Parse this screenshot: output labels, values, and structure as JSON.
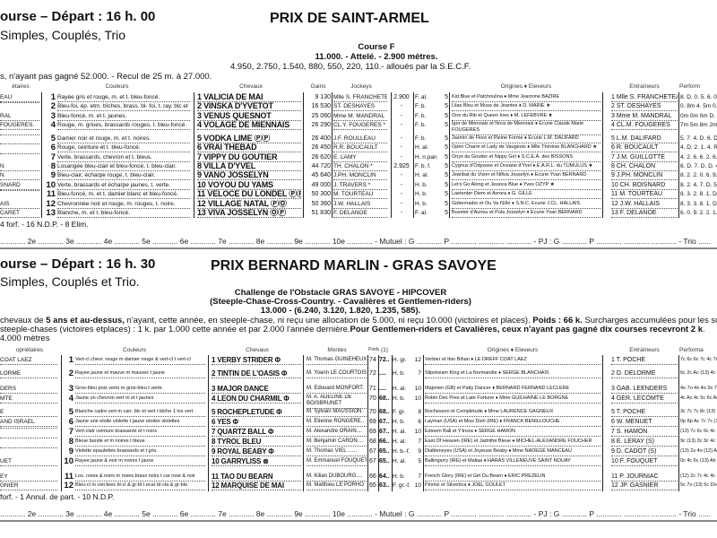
{
  "race1": {
    "header": "ourse  – Départ : 16 h. 00",
    "bets": "Simples, Couplés, Trio",
    "title": "PRIX DE SAINT-ARMEL",
    "course": "Course F",
    "allocation": "11.000. - Attelé. - 2.900 mètres.",
    "prizes": "4.950, 2.750, 1.540, 880, 550, 220, 110.- alloués par la S.E.C.F.",
    "conditions": "s, n'ayant pas gagné 52.000. - Recul de 25 m. à 27.000.",
    "columns": {
      "owners": "étaires",
      "colors": "Couleurs",
      "horses": "Chevaux",
      "gains": "Gains",
      "jockeys": "Jockeys",
      "origins": "Origines ♦ Eleveurs",
      "trainers": "Entraîneurs",
      "perf": "Perform"
    },
    "rows": [
      {
        "owner": "EAU",
        "num": "1",
        "colors": "Rayée gris et rouge, m. et t. bleu-foncé.",
        "horse": "1 VALICIA DE MAI",
        "gains": "9 130",
        "jockey": "Mlle S. FRANCHETEAU",
        "dist": "2.900",
        "sex": "F. al.",
        "age": "5",
        "origins": "Kid Blue et Patchoulina ♦ Mme Jeannine BAZIRE",
        "trainer": "1 Mlle S. FRANCHETEAU",
        "perf": "8. D. 0. 5. 6. 0."
      },
      {
        "owner": "",
        "num": "2",
        "colors": "Bleu-foi, ép. etm. bîches, brass. bl- foi, t. ray. blc et bla-fon",
        "horse": "2 VINSKA D'YVETOT",
        "gains": "16 530",
        "jockey": "ST. DESHAYES",
        "dist": "-",
        "sex": "F. b.",
        "age": "5",
        "origins": "Lilas Bleu et Muse de Jeantes ♦ D. MARIE ★",
        "trainer": "2 ST. DESHAYES",
        "perf": "0. 8m 4. 5m 0. 7"
      },
      {
        "owner": "RAL",
        "num": "3",
        "colors": "Bleu-foncé, m. et t. jaunes.",
        "horse": "3 VENUS QUESNOT",
        "gains": "25 060",
        "jockey": "Mme M. MANDRAL",
        "dist": "-",
        "sex": "F. b.",
        "age": "5",
        "origins": "One du Rib et Queen Ines ♦ M. LEFEBVRE ★",
        "trainer": "3 Mme M. MANDRAL",
        "perf": "0m 0m 0m D. 7"
      },
      {
        "owner": "FOUGERES.",
        "num": "4",
        "colors": "Rouge, m. grises, brassards rouges, t. bleu-foncé.",
        "horse": "4 VOLAGE DE MIENNAIS",
        "gains": "26 290",
        "jockey": "CL.Y. FOUGERES *",
        "dist": "-",
        "sex": "F. b.",
        "age": "5",
        "origins": "Igor de Miennais et Nora de Miennais ♦ Ecurie Claude Marie FOUGERES",
        "trainer": "4 CL.M. FOUGERES",
        "perf": "7m 5m 8m 2m 0"
      },
      {
        "owner": "",
        "num": "5",
        "colors": "Damier noir et rouge, m. et t. noires.",
        "horse": "5 VODKA LIME ⓅⓅ",
        "gains": "26 400",
        "jockey": "J.F. ROULLEAU",
        "dist": "-",
        "sex": "F. b.",
        "age": "5",
        "origins": "Jasmin de Flore et Pleine Forme ♦ Ecurie L.M. DALIFARD",
        "trainer": "5 L.M. DALIFARD",
        "perf": "5. 7. 4. D. 6. D."
      },
      {
        "owner": "",
        "num": "6",
        "colors": "Rouge, ceinture et t. bleu-foncé.",
        "horse": "6 VRAI THEBAD",
        "gains": "26 450",
        "jockey": "R.R. BOUCAULT",
        "dist": "-",
        "sex": "H. al.",
        "age": "5",
        "origins": "Open Charm et Lady de Vaugeois ♦ Mlle Thérèse BLANCHARD ★",
        "trainer": "6 R. BOUCAULT",
        "perf": "4. D. 2. 1. 4. R."
      },
      {
        "owner": "",
        "num": "7",
        "colors": "Verte, brassards, chevron et t. bleus.",
        "horse": "7 VIPPY DU GOUTIER",
        "gains": "26 620",
        "jockey": "E. LAMY",
        "dist": "-",
        "sex": "H. n.pan",
        "age": "5",
        "origins": "Onyx du Goutier et Nippy Girl ♦ S.C.E.A. des BISSONS",
        "trainer": "7 J.M. GUILLOTTE",
        "perf": "4. 2. 6. 6. 2. 6."
      },
      {
        "owner": "N",
        "num": "8",
        "colors": "Losangée bleu-clair et bleu-foncé, t. bleu-clair.",
        "horse": "8 VILLA D'YVEL",
        "gains": "44 720",
        "jockey": "TH. CHALON *",
        "dist": "2.925",
        "sex": "F. b. f.",
        "age": "5",
        "origins": "Cygnus d'Odyssee et Oceane d'Yvel ♦ E.A.R.L. du TUMULUS ★",
        "trainer": "8 CH. CHALON",
        "perf": "6. D. 7. D. D. 4."
      },
      {
        "owner": "N",
        "num": "9",
        "colors": "Bleu-clair, écharpe rouge, t. bleu-clair.",
        "horse": "9 VANO JOSSELYN",
        "gains": "45 640",
        "jockey": "J.PH. MONCLIN",
        "dist": "-",
        "sex": "H. al.",
        "age": "5",
        "origins": "Jeanbat du Vivier et Nifiva Josselyn ♦ Ecurie Yvan BERNARD",
        "trainer": "9 J.PH. MONCLIN",
        "perf": "8. 2. 2. 0. 6. 9."
      },
      {
        "owner": "SNARD",
        "num": "10",
        "colors": "Verte, brassards et écharpe jaunes, t. verte.",
        "horse": "10 VOYOU DU YAMS",
        "gains": "49 000",
        "jockey": "J. TRAVERS *",
        "dist": "-",
        "sex": "H. b.",
        "age": "5",
        "origins": "Let's Go Along et Jessica Blue ♦ Yves OZYP ★",
        "trainer": "10 CH. BOISNARD",
        "perf": "8. 2. 4. 7. D. 5."
      },
      {
        "owner": "",
        "num": "11",
        "colors": "Bleu-foncé, m. et t. damier blanc et bleu-foncé.",
        "horse": "11 VELOCE DU LONDEL ⓅⓅ",
        "gains": "50 300",
        "jockey": "M. TOURTEAU",
        "dist": "-",
        "sex": "H. b.",
        "age": "5",
        "origins": "Laetenter Diem et Avrora ♦ G. GILLE",
        "trainer": "11 M. TOURTEAU",
        "perf": "8. 3. 2. 8. 1. D."
      },
      {
        "owner": "AIS",
        "num": "12",
        "colors": "Chevronnée noir et rouge, m. rouges, t. noire.",
        "horse": "12 VILLAGE NATAL ⓅⓄ",
        "gains": "50 360",
        "jockey": "J.W. HALLAIS",
        "dist": "-",
        "sex": "H. b.",
        "age": "5",
        "origins": "Gobernador et Ou Va t'Elle ♦ S.N.C. Ecurie J.CL. HALLAIS",
        "trainer": "12 J.W. HALLAIS",
        "perf": "8. 3. 3. 8. 1. D."
      },
      {
        "owner": "CARET",
        "num": "13",
        "colors": "Blanche, m. et t. bleu-foncé.",
        "horse": "13 VIVA JOSSELYN ⓄⓅ",
        "gains": "51 830",
        "jockey": "F. DELANOE",
        "dist": "-",
        "sex": "F. al.",
        "age": "5",
        "origins": "Buveter d'Aunou et Pula Josselyn ♦ Ecurie Yvan BERNARD",
        "trainer": "13 F. DELANOE",
        "perf": "6. 0. 9. 2. 2. 1."
      }
    ],
    "footnote": "4 forf. - 16 N.D.P. - 8 Elim.",
    "placings": "............ 2e ............ 3e ............ 4e ............ 5e ............ 6e ............ 7e ............ 8e ............ 9e ............ 10e ............ - Mutuel : G ............ P ............ ............ ............ - PJ : G ............ P ............ ............ ............ - Trio ......"
  },
  "race2": {
    "header": "ourse  – Départ : 16 h. 30",
    "bets": "Simples, Couplés et Trio.",
    "title": "PRIX BERNARD MARLIN - GRAS SAVOYE",
    "challenge": "Challenge de l'Obstacle GRAS SAVOYE - HIPCOVER",
    "type": "(Steeple-Chase-Cross-Country. - Cavalières et Gentlemen-riders)",
    "prizes": "13.000 - (6.240, 3.120, 1.820, 1.235, 585).",
    "cond_pre": "chevaux de ",
    "cond_bold": "5 ans et au-dessus,",
    "cond_mid": " n'ayant, cette année, en steeple-chase, ni reçu une allocation de 5.000, ni reçu 10.000 (victoires et places). ",
    "cond_bold2": "Poids : 66 k.",
    "cond_end": " Surcharges   accumulées pour les somme",
    "cond2_pre": "steeple-chases (victoires etplaces) : 1 k. par 1.000 cette année et par 2.000 l'année dernière.",
    "cond2_bold": "Pour Gentlemen-riders et Cavalières, ceux n'ayant pas gagné dix courses recevront 2 k",
    "cond2_end": ".",
    "distance": "4.000 mètres",
    "columns": {
      "owners": "opriétaires",
      "colors": "Couleurs",
      "horses": "Chevaux",
      "montes": "Montes",
      "poids": "Poids",
      "handicap": "(1)",
      "origins": "Origines ♦ Eleveurs",
      "trainers": "Entraîneurs",
      "perf": "Performa"
    },
    "rows": [
      {
        "owner": "COAT LAEZ",
        "num": "1",
        "colors": "Vert-cl chevr. rouge m damier rouge & vert-cl t vert-cl",
        "horse": "1 VERBY STRIDER Φ",
        "monte": "M. Thomas GUINEHEUX",
        "poids": "74",
        "p2": "72..",
        "sex": "H. gr.",
        "age": "12",
        "origins": "Verbier et Iton Bihan ♦ LE DREFF COAT LAEZ",
        "trainer": "1 T. POCHE",
        "perf": "7c 6c 6c 7c 4c 7c (1"
      },
      {
        "owner": "LORME",
        "num": "2",
        "colors": "Rayee jaune et mauve m mauves t jaune",
        "horse": "2 TINTIN DE L'OASIS Φ",
        "monte": "M. Yoann LE COURTOIS",
        "poids": "72",
        "p2": "....",
        "sex": "H. b.",
        "age": "7",
        "origins": "Slipstream King et La Normandie ♦ SERGE BLANCHAIS",
        "trainer": "2 D. DELORME",
        "perf": "6c 2c Ac (13) 4c 1c"
      },
      {
        "owner": "DERS",
        "num": "3",
        "colors": "Gros-bleu pois verts m gros-bleu t verte.",
        "horse": "3 MAJOR DANCE",
        "monte": "M. Edouard MONFORT.",
        "poids": "71",
        "p2": "....",
        "sex": "H. al.",
        "age": "10",
        "origins": "Majorien (GB) et Patty Dancer ♦ BERNARD FERNAND LECLERE",
        "trainer": "3 GAB. LEENDERS",
        "perf": "4o 7o 4s 4o 3s 7s (1"
      },
      {
        "owner": "MTE",
        "num": "4",
        "colors": "Jaune un chevron vert m et t jaunes",
        "horse": "4 LEON DU CHARMIL Φ",
        "monte": "M. A. ADELINE DE BOISBRUNET",
        "poids": "70",
        "p2": "68..",
        "sex": "H. b.",
        "age": "10",
        "origins": "Robin Des Pres et Late Fortune ♦ Mme GUILHAINE LE BORGNE",
        "trainer": "4 GER. LECOMTE",
        "perf": "4c Ac 4c 5c 6c Ac (1"
      },
      {
        "owner": "E",
        "num": "5",
        "colors": "Blanche cadre vert m carr. blc et vert t blche 1 los vert",
        "horse": "5 ROCHEPLETUDE Φ",
        "monte": "M. Sylvain MAUSSION .",
        "poids": "70",
        "p2": "68..",
        "sex": "F. gr.",
        "age": "8",
        "origins": "Rochesson et Completude ♦ Mme LAURENCE GAGNEUX",
        "trainer": "5 T. POCHE",
        "perf": "3c 7c 7c 8c (13) 7c"
      },
      {
        "owner": "AND ISRAEL",
        "num": "6",
        "colors": "Jaune une etoile violette t jaune etoiles violettes",
        "horse": "6 YES Φ",
        "monte": "M. Etienne RONGERE..",
        "poids": "69",
        "p2": "67..",
        "sex": "H. b.",
        "age": "6",
        "origins": "Layman (USA) et Miss Dish (IRE) ♦ FRANCK BENILLOUCHE",
        "trainer": "6 W. MENUET",
        "perf": "0p 8p Ac 7c 7c (13)"
      },
      {
        "owner": "",
        "num": "7",
        "colors": "Vert-clair ceinture brassards et t noirs",
        "horse": "7 QUARTZ BALL Φ",
        "monte": "M. Alexandre ORAIN....",
        "poids": "69",
        "p2": "67..",
        "sex": "H. al.",
        "age": "10",
        "origins": "Esteem Ball et Y'treza ♦ SERGE HAMON",
        "trainer": "7 S. HAMON",
        "perf": "(13) 7c 6c 6c 4c 6c"
      },
      {
        "owner": "",
        "num": "8",
        "colors": "Bleue bande et m noires t bleue",
        "horse": "8 TYROL BLEU",
        "monte": "M. Benjamin CARON....",
        "poids": "68",
        "p2": "66..",
        "sex": "H. al.",
        "age": "7",
        "origins": "East Of Heaven (IRE) et Jadnthe Bleue ♦ MICHEL-ALEXANDRE FOUCHER",
        "trainer": "8 E. LERAY (S)",
        "perf": "9c (13) 3c 3c 4c 7c"
      },
      {
        "owner": "",
        "num": "9",
        "colors": "Violette epaulettes brassards et t gris.",
        "horse": "9 ROYAL BEABY Φ",
        "monte": "M. Thomas VIEL ......",
        "poids": "67",
        "p2": "65..",
        "sex": "H. b.-f.",
        "age": "9",
        "origins": "Diableneyev (USA) et Joyeuse Beaby ♦ Mme NADEGE MANCEAU",
        "trainer": "9 D. CADOT (S)",
        "perf": "(13) 2s 4o (12) Ac 4"
      },
      {
        "owner": "UET",
        "num": "10",
        "colors": "Rayee jaune & noir m noires t jaune",
        "horse": "10 GARRYLISS ⊗",
        "monte": "M. Emmanuel FOUQUET",
        "poids": "67",
        "p2": "65..",
        "sex": "H. al.",
        "age": "5",
        "origins": "Ballingarry (IRE) et Maliaa ♦ HARAS VILLENEUVE SAINT NOUAY",
        "trainer": "10 F. FOUQUET",
        "perf": "0c 4c 6c (13) Ah A"
      },
      {
        "owner": "EY",
        "num": "11",
        "colors": "Los. roses & noirs m roses.brass noirs t car rose & noir",
        "horse": "11 TAO DU BEARN",
        "monte": "M. Kilian DUBOURG....",
        "poids": "66",
        "p2": "64..",
        "sex": "H. b.",
        "age": "7",
        "origins": "French Glory (IRE) et Girl Du Bearn ♦ ERIC PREZELIN",
        "trainer": "11 P. JOURNIAC",
        "perf": "(12) 2c 7c 4c 4c 2c"
      },
      {
        "owner": "GNIER",
        "num": "12",
        "colors": "Bleu-cl m cerclees bl-cl & gr-bl t ecar bl-cla & gr-ble.",
        "horse": "12 MARQUISE DE MAI",
        "monte": "M. Matthieu LE PORHO",
        "poids": "65",
        "p2": "63..",
        "sex": "F. gr.-f.",
        "age": "10",
        "origins": "Pinmix et Silvertica ♦ JOEL GOULET",
        "trainer": "12 JP. GASNIER",
        "perf": "5c 7o (13) 5c Do 2c"
      }
    ],
    "footnote": "forf. - 1 Annul. de part. - 10 N.D.P.",
    "placings": "............ 2e ............ 3e ............ 4e ............ 5e ............ 6e ............ 7e ............ 8e ............ 9e ............ 10e ............ - Mutuel : G ............ P ............ ............ ............ - PJ : G ............ P ............ ............ ............ - Trio ......"
  }
}
